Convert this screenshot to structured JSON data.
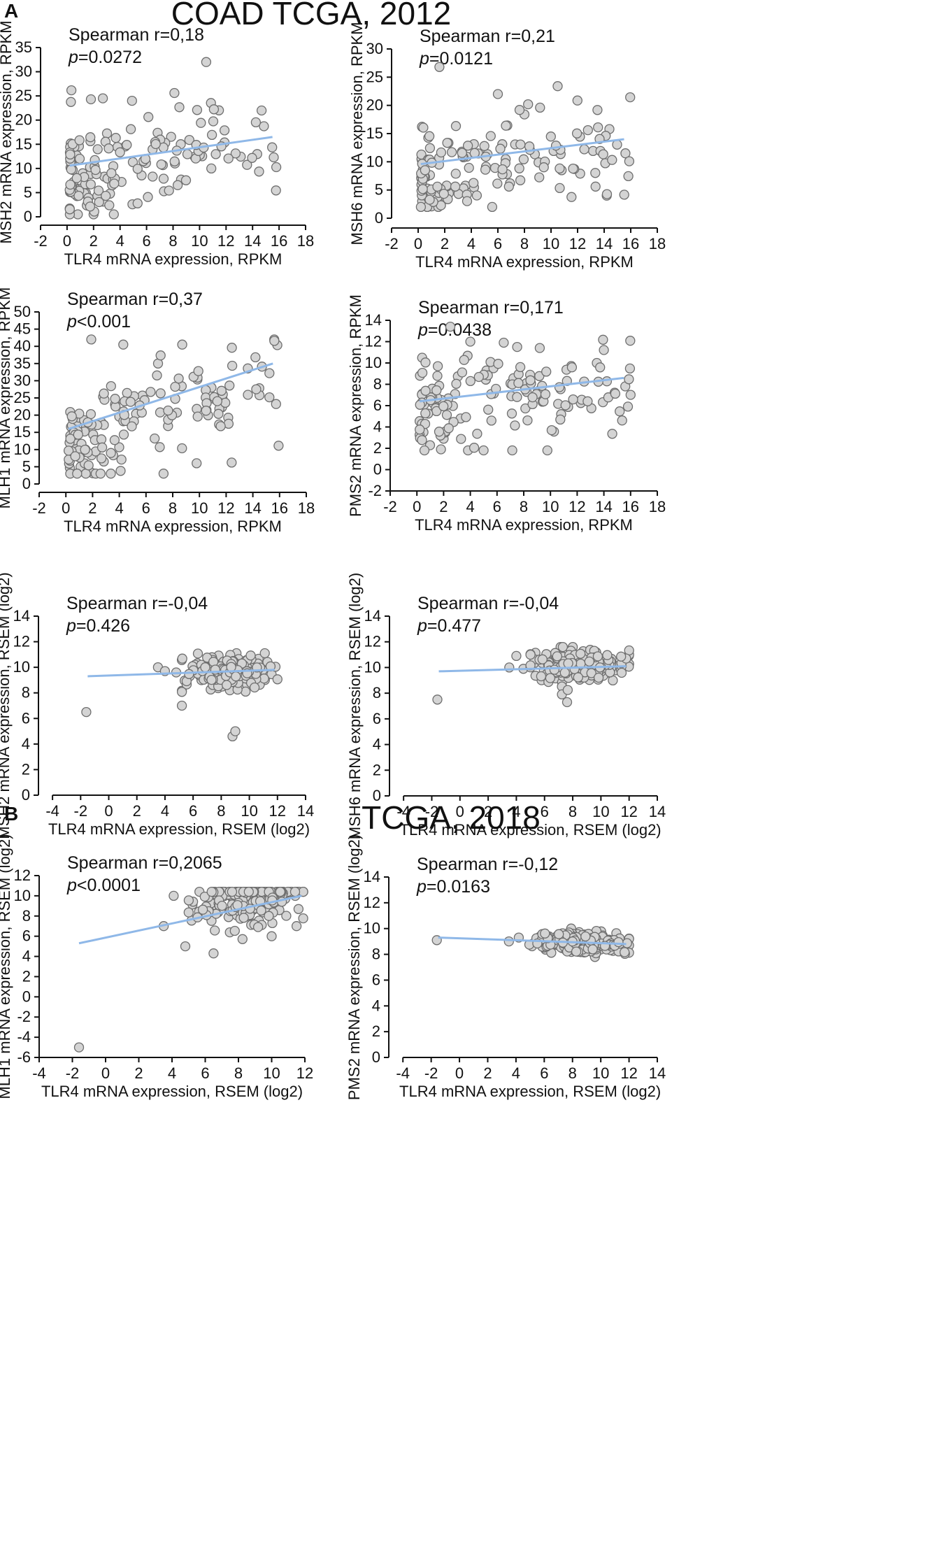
{
  "figure": {
    "panel_a": {
      "letter": "A",
      "title": "COAD TCGA, 2012"
    },
    "panel_b": {
      "letter": "B",
      "title": "TCGA, 2018"
    }
  },
  "colors": {
    "point_fill": "#d4d4d4",
    "point_stroke": "#6e6e6e",
    "regression_line": "#8fb8e8",
    "axis": "#111111"
  },
  "chart_data": [
    {
      "id": "a1",
      "panel": "A",
      "type": "scatter",
      "xlabel": "TLR4 mRNA expression, RPKM",
      "ylabel": "MSH2 mRNA expression, RPKM",
      "stat_r": "Spearman r=0,18",
      "stat_p_prefix": "p",
      "stat_p_value": "=0.0272",
      "xlim": [
        -2,
        18
      ],
      "ylim": [
        0,
        35
      ],
      "xticks": [
        -2,
        0,
        2,
        4,
        6,
        8,
        10,
        12,
        14,
        16,
        18
      ],
      "yticks": [
        0,
        5,
        10,
        15,
        20,
        25,
        30,
        35
      ],
      "regression": [
        [
          0.2,
          10.6
        ],
        [
          15.5,
          16.5
        ]
      ],
      "seed": 11,
      "n": 150,
      "x_range": [
        0.2,
        16
      ],
      "x_skew": 1.8,
      "y_mean": 12,
      "y_sd": 4.8,
      "y_min": 0.5,
      "y_max": 32,
      "points": [
        [
          10.5,
          32.0
        ],
        [
          15.6,
          12.3
        ],
        [
          8.1,
          25.6
        ],
        [
          1.8,
          24.3
        ],
        [
          2.7,
          24.5
        ],
        [
          0.2,
          1.7
        ],
        [
          2.0,
          0.5
        ],
        [
          6.1,
          4.1
        ],
        [
          4.9,
          24.0
        ],
        [
          8.6,
          7.7
        ]
      ]
    },
    {
      "id": "a2",
      "panel": "A",
      "type": "scatter",
      "xlabel": "TLR4 mRNA expression, RPKM",
      "ylabel": "MSH6 mRNA expression, RPKM",
      "stat_r": "Spearman r=0,21",
      "stat_p_prefix": "p",
      "stat_p_value": "=0.0121",
      "xlim": [
        -2,
        18
      ],
      "ylim": [
        0,
        30
      ],
      "xticks": [
        -2,
        0,
        2,
        4,
        6,
        8,
        10,
        12,
        14,
        16,
        18
      ],
      "yticks": [
        0,
        5,
        10,
        15,
        20,
        25,
        30
      ],
      "regression": [
        [
          0.2,
          9.6
        ],
        [
          15.5,
          14.0
        ]
      ],
      "seed": 23,
      "n": 150,
      "x_range": [
        0.2,
        16
      ],
      "x_skew": 1.8,
      "y_mean": 10.5,
      "y_sd": 3.8,
      "y_min": 2,
      "y_max": 27,
      "points": [
        [
          1.6,
          26.8
        ],
        [
          10.5,
          23.4
        ],
        [
          6.0,
          22.0
        ],
        [
          15.6,
          11.5
        ],
        [
          8.0,
          18.4
        ],
        [
          0.3,
          3.0
        ],
        [
          1.0,
          2.1
        ],
        [
          10.8,
          8.5
        ]
      ]
    },
    {
      "id": "a3",
      "panel": "A",
      "type": "scatter",
      "xlabel": "TLR4 mRNA expression, RPKM",
      "ylabel": "MLH1 mRNA expression, RPKM",
      "stat_r": "Spearman r=0,37",
      "stat_p_prefix": "p",
      "stat_p_value": "<0.001",
      "xlim": [
        -2,
        18
      ],
      "ylim": [
        0,
        50
      ],
      "xticks": [
        -2,
        0,
        2,
        4,
        6,
        8,
        10,
        12,
        14,
        16,
        18
      ],
      "yticks": [
        0,
        5,
        10,
        15,
        20,
        25,
        30,
        35,
        40,
        45,
        50
      ],
      "regression": [
        [
          0.2,
          16.0
        ],
        [
          15.5,
          35.0
        ]
      ],
      "seed": 37,
      "n": 150,
      "x_range": [
        0.2,
        16
      ],
      "x_skew": 1.8,
      "y_mean": 20,
      "y_sd": 8,
      "y_min": 3,
      "y_max": 42,
      "points": [
        [
          15.6,
          42.0
        ],
        [
          1.9,
          42.0
        ],
        [
          4.3,
          40.5
        ],
        [
          6.9,
          35.0
        ],
        [
          0.3,
          4.7
        ],
        [
          1.0,
          3.5
        ],
        [
          4.1,
          3.8
        ],
        [
          10.9,
          28.0
        ],
        [
          9.8,
          21.8
        ]
      ]
    },
    {
      "id": "a4",
      "panel": "A",
      "type": "scatter",
      "xlabel": "TLR4 mRNA expression, RPKM",
      "ylabel": "PMS2 mRNA expression, RPKM",
      "stat_r": "Spearman r=0,171",
      "stat_p_prefix": "p",
      "stat_p_value": "=0.0438",
      "xlim": [
        -2,
        18
      ],
      "ylim": [
        -2,
        14
      ],
      "xticks": [
        -2,
        0,
        2,
        4,
        6,
        8,
        10,
        12,
        14,
        16,
        18
      ],
      "yticks": [
        -2,
        0,
        2,
        4,
        6,
        8,
        10,
        12,
        14
      ],
      "regression": [
        [
          0.2,
          6.4
        ],
        [
          15.5,
          8.6
        ]
      ],
      "seed": 53,
      "n": 150,
      "x_range": [
        0.2,
        16
      ],
      "x_skew": 1.8,
      "y_mean": 7.0,
      "y_sd": 2.1,
      "y_min": 1.8,
      "y_max": 13.4,
      "points": [
        [
          2.5,
          13.4
        ],
        [
          15.6,
          7.8
        ],
        [
          1.8,
          1.9
        ],
        [
          4.0,
          12.0
        ],
        [
          6.5,
          11.9
        ],
        [
          9.2,
          11.4
        ],
        [
          10.8,
          5.2
        ],
        [
          2.0,
          2.9
        ]
      ]
    },
    {
      "id": "b1",
      "panel": "B",
      "type": "scatter",
      "xlabel": "TLR4 mRNA expression, RSEM (log2)",
      "ylabel": "MSH2 mRNA expression, RSEM (log2)",
      "stat_r": "Spearman r=-0,04",
      "stat_p_prefix": "p",
      "stat_p_value": "=0.426",
      "xlim": [
        -5,
        14
      ],
      "ylim": [
        0,
        14
      ],
      "xticks": [
        -4,
        -2,
        0,
        2,
        4,
        6,
        8,
        10,
        12,
        14
      ],
      "yticks": [
        0,
        2,
        4,
        6,
        8,
        10,
        12,
        14
      ],
      "regression": [
        [
          -1.5,
          9.3
        ],
        [
          11.8,
          9.8
        ]
      ],
      "seed": 71,
      "n": 260,
      "x_range": [
        5.2,
        12
      ],
      "x_center": 8.6,
      "x_sd": 1.6,
      "y_mean": 9.5,
      "y_sd": 0.65,
      "y_min": 7.6,
      "y_max": 11.1,
      "points": [
        [
          -1.6,
          6.5
        ],
        [
          8.8,
          4.6
        ],
        [
          9.0,
          5.0
        ],
        [
          5.2,
          7.0
        ],
        [
          3.5,
          10.0
        ],
        [
          4.0,
          9.7
        ],
        [
          4.8,
          9.6
        ]
      ]
    },
    {
      "id": "b2",
      "panel": "B",
      "type": "scatter",
      "xlabel": "TLR4 mRNA expression, RSEM (log2)",
      "ylabel": "MSH6 mRNA expression, RSEM (log2)",
      "stat_r": "Spearman r=-0,04",
      "stat_p_prefix": "p",
      "stat_p_value": "=0.477",
      "xlim": [
        -5,
        14
      ],
      "ylim": [
        0,
        14
      ],
      "xticks": [
        -4,
        -2,
        0,
        2,
        4,
        6,
        8,
        10,
        12,
        14
      ],
      "yticks": [
        0,
        2,
        4,
        6,
        8,
        10,
        12,
        14
      ],
      "regression": [
        [
          -1.5,
          9.7
        ],
        [
          11.8,
          10.1
        ]
      ],
      "seed": 89,
      "n": 260,
      "x_range": [
        5.0,
        12
      ],
      "x_center": 8.6,
      "x_sd": 1.6,
      "y_mean": 10.0,
      "y_sd": 0.6,
      "y_min": 7.3,
      "y_max": 11.6,
      "points": [
        [
          -1.6,
          7.5
        ],
        [
          4.0,
          10.9
        ],
        [
          3.5,
          10.0
        ],
        [
          4.5,
          9.9
        ],
        [
          8.0,
          11.6
        ],
        [
          7.6,
          7.3
        ]
      ]
    },
    {
      "id": "b3",
      "panel": "B",
      "type": "scatter",
      "xlabel": "TLR4 mRNA expression, RSEM (log2)",
      "ylabel": "MLH1 mRNA expression, RSEM (log2)",
      "stat_r": "Spearman r=0,2065",
      "stat_p_prefix": "p",
      "stat_p_value": "<0.0001",
      "xlim": [
        -4,
        12
      ],
      "ylim": [
        -6,
        12
      ],
      "xticks": [
        -4,
        -2,
        0,
        2,
        4,
        6,
        8,
        10,
        12
      ],
      "yticks": [
        -6,
        -4,
        -2,
        0,
        2,
        4,
        6,
        8,
        10,
        12
      ],
      "regression": [
        [
          -1.6,
          5.3
        ],
        [
          11.8,
          10.0
        ]
      ],
      "seed": 97,
      "n": 260,
      "x_range": [
        4.2,
        11.9
      ],
      "x_center": 8.4,
      "x_sd": 1.6,
      "y_mean": 8.6,
      "y_sd": 1.35,
      "y_min": 4.0,
      "y_max": 10.4,
      "points": [
        [
          -1.6,
          -5.0
        ],
        [
          3.5,
          7.0
        ],
        [
          4.8,
          5.0
        ],
        [
          6.5,
          4.3
        ],
        [
          10.0,
          6.0
        ],
        [
          11.5,
          7.0
        ],
        [
          4.1,
          10.0
        ]
      ]
    },
    {
      "id": "b4",
      "panel": "B",
      "type": "scatter",
      "xlabel": "TLR4 mRNA expression, RSEM (log2)",
      "ylabel": "PMS2 mRNA expression, RSEM (log2)",
      "stat_r": "Spearman r=-0,12",
      "stat_p_prefix": "p",
      "stat_p_value": "=0.0163",
      "xlim": [
        -5,
        14
      ],
      "ylim": [
        0,
        14
      ],
      "xticks": [
        -4,
        -2,
        0,
        2,
        4,
        6,
        8,
        10,
        12,
        14
      ],
      "yticks": [
        0,
        2,
        4,
        6,
        8,
        10,
        12,
        14
      ],
      "regression": [
        [
          -1.5,
          9.3
        ],
        [
          11.8,
          8.8
        ]
      ],
      "seed": 113,
      "n": 260,
      "x_range": [
        4.5,
        12
      ],
      "x_center": 8.7,
      "x_sd": 1.5,
      "y_mean": 9.0,
      "y_sd": 0.4,
      "y_min": 7.8,
      "y_max": 10.0,
      "points": [
        [
          -1.6,
          9.1
        ],
        [
          3.5,
          9.0
        ],
        [
          4.2,
          9.3
        ]
      ]
    }
  ]
}
